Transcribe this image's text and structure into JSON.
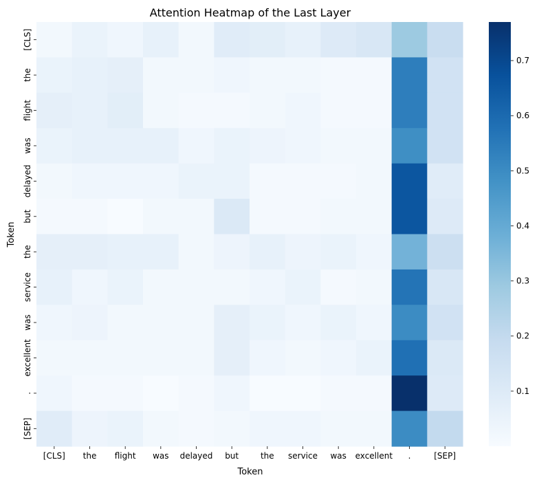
{
  "chart_data": {
    "type": "heatmap",
    "title": "Attention Heatmap of the Last Layer",
    "xlabel": "Token",
    "ylabel": "Token",
    "x_tokens": [
      "[CLS]",
      "the",
      "flight",
      "was",
      "delayed",
      "but",
      "the",
      "service",
      "was",
      "excellent",
      ".",
      "[SEP]"
    ],
    "y_tokens": [
      "[CLS]",
      "the",
      "flight",
      "was",
      "delayed",
      "but",
      "the",
      "service",
      "was",
      "excellent",
      ".",
      "[SEP]"
    ],
    "colormap": "Blues",
    "vmin": 0.0,
    "vmax": 0.77,
    "colorbar_ticks": [
      0.1,
      0.2,
      0.3,
      0.4,
      0.5,
      0.6,
      0.7
    ],
    "matrix": [
      [
        0.02,
        0.05,
        0.03,
        0.06,
        0.02,
        0.09,
        0.08,
        0.06,
        0.1,
        0.12,
        0.29,
        0.18
      ],
      [
        0.05,
        0.06,
        0.07,
        0.02,
        0.02,
        0.03,
        0.02,
        0.02,
        0.01,
        0.01,
        0.54,
        0.15
      ],
      [
        0.07,
        0.06,
        0.08,
        0.02,
        0.01,
        0.01,
        0.02,
        0.03,
        0.01,
        0.01,
        0.54,
        0.15
      ],
      [
        0.05,
        0.06,
        0.06,
        0.06,
        0.03,
        0.05,
        0.04,
        0.03,
        0.02,
        0.02,
        0.49,
        0.15
      ],
      [
        0.02,
        0.03,
        0.03,
        0.03,
        0.05,
        0.05,
        0.01,
        0.01,
        0.01,
        0.02,
        0.66,
        0.09
      ],
      [
        0.01,
        0.01,
        0.0,
        0.02,
        0.02,
        0.11,
        0.01,
        0.01,
        0.02,
        0.02,
        0.66,
        0.1
      ],
      [
        0.07,
        0.07,
        0.06,
        0.06,
        0.02,
        0.04,
        0.06,
        0.04,
        0.05,
        0.03,
        0.37,
        0.17
      ],
      [
        0.06,
        0.03,
        0.05,
        0.02,
        0.02,
        0.02,
        0.03,
        0.05,
        0.01,
        0.02,
        0.57,
        0.12
      ],
      [
        0.03,
        0.04,
        0.02,
        0.02,
        0.02,
        0.07,
        0.05,
        0.03,
        0.05,
        0.03,
        0.5,
        0.15
      ],
      [
        0.02,
        0.02,
        0.02,
        0.02,
        0.02,
        0.07,
        0.03,
        0.02,
        0.03,
        0.05,
        0.58,
        0.11
      ],
      [
        0.03,
        0.01,
        0.01,
        0.0,
        0.01,
        0.03,
        0.0,
        0.0,
        0.01,
        0.01,
        0.77,
        0.1
      ],
      [
        0.09,
        0.04,
        0.05,
        0.02,
        0.01,
        0.02,
        0.03,
        0.03,
        0.02,
        0.02,
        0.5,
        0.2
      ]
    ]
  }
}
